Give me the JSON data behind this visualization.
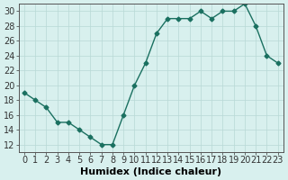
{
  "x": [
    0,
    1,
    2,
    3,
    4,
    5,
    6,
    7,
    8,
    9,
    10,
    11,
    12,
    13,
    14,
    15,
    16,
    17,
    18,
    19,
    20,
    21,
    22,
    23
  ],
  "y": [
    19,
    18,
    17,
    15,
    15,
    14,
    13,
    12,
    12,
    16,
    20,
    23,
    27,
    29,
    29,
    29,
    30,
    29,
    30,
    30,
    31,
    28,
    24,
    23
  ],
  "line_color": "#1a7060",
  "marker_color": "#1a7060",
  "bg_color": "#d8f0ee",
  "grid_color": "#b8d8d5",
  "xlabel": "Humidex (Indice chaleur)",
  "xlim": [
    -0.5,
    23.5
  ],
  "ylim": [
    11,
    31
  ],
  "yticks": [
    12,
    14,
    16,
    18,
    20,
    22,
    24,
    26,
    28,
    30
  ],
  "xticks": [
    0,
    1,
    2,
    3,
    4,
    5,
    6,
    7,
    8,
    9,
    10,
    11,
    12,
    13,
    14,
    15,
    16,
    17,
    18,
    19,
    20,
    21,
    22,
    23
  ],
  "xtick_labels": [
    "0",
    "1",
    "2",
    "3",
    "4",
    "5",
    "6",
    "7",
    "8",
    "9",
    "10",
    "11",
    "12",
    "13",
    "14",
    "15",
    "16",
    "17",
    "18",
    "19",
    "20",
    "21",
    "22",
    "23"
  ],
  "xlabel_fontsize": 8,
  "tick_fontsize": 7
}
